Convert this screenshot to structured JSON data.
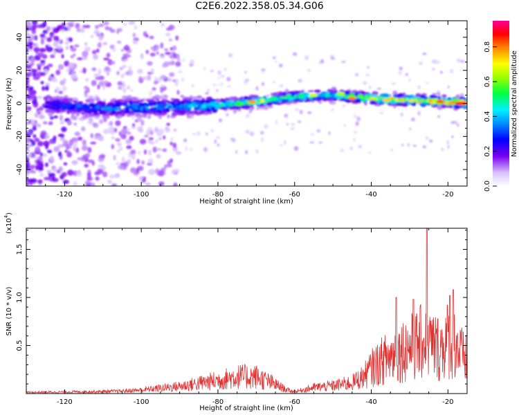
{
  "title": "C2E6.2022.358.05.34.G06",
  "chart_data": [
    {
      "type": "heatmap",
      "xlabel": "Height of straight line (km)",
      "ylabel": "Frequency (Hz)",
      "xlim": [
        -130,
        -15
      ],
      "ylim": [
        -50,
        50
      ],
      "xticks": [
        -120,
        -100,
        -80,
        -60,
        -40,
        -20
      ],
      "yticks": [
        -40,
        -20,
        0,
        20,
        40
      ],
      "colorbar": {
        "label": "Normalized spectral amplitude",
        "range": [
          0,
          0.95
        ],
        "ticks": [
          "0.0",
          "0.2",
          "0.4",
          "0.6",
          "0.8"
        ]
      },
      "ridge": {
        "description_points_x": [
          -130,
          -110,
          -100,
          -90,
          -80,
          -70,
          -60,
          -50,
          -40,
          -30,
          -20,
          -15
        ],
        "frequency_hz": [
          0,
          -3,
          -2,
          -2,
          -1,
          1,
          4,
          5,
          3,
          2,
          1,
          0
        ],
        "peak_amplitude": [
          0.2,
          0.3,
          0.35,
          0.35,
          0.45,
          0.7,
          0.55,
          0.5,
          0.8,
          0.75,
          0.85,
          0.95
        ]
      },
      "colors": {
        "scale": [
          "#ffffff",
          "#e8d8ff",
          "#7700ee",
          "#0000ff",
          "#00ffff",
          "#00ff00",
          "#ffff00",
          "#ff7700",
          "#ff0000",
          "#ff00aa"
        ]
      }
    },
    {
      "type": "line",
      "xlabel": "Height of straight line (km)",
      "ylabel": "SNR (10 * v/v)",
      "scale_note": "(x10",
      "scale_exp": "4",
      "scale_close": ")",
      "xlim": [
        -130,
        -15
      ],
      "ylim": [
        0,
        1.72
      ],
      "xticks": [
        -120,
        -100,
        -80,
        -60,
        -40,
        -20
      ],
      "yticks": [
        "0.5",
        "1.0",
        "1.5"
      ],
      "ytick_values": [
        0.5,
        1.0,
        1.5
      ],
      "envelope_x": [
        -130,
        -115,
        -105,
        -100,
        -95,
        -90,
        -85,
        -80,
        -75,
        -70,
        -66,
        -62,
        -60,
        -55,
        -50,
        -45,
        -42,
        -40,
        -37,
        -34,
        -31,
        -28,
        -26,
        -24,
        -22,
        -20,
        -18,
        -17,
        -16,
        -15
      ],
      "envelope_y": [
        0.02,
        0.03,
        0.04,
        0.06,
        0.09,
        0.12,
        0.17,
        0.22,
        0.28,
        0.28,
        0.18,
        0.06,
        0.03,
        0.1,
        0.13,
        0.18,
        0.28,
        0.42,
        0.55,
        0.65,
        0.75,
        0.8,
        0.9,
        0.8,
        0.75,
        0.9,
        0.85,
        0.7,
        0.6,
        0.55
      ],
      "peaks": [
        {
          "x": -25.5,
          "y": 1.72
        },
        {
          "x": -18.6,
          "y": 1.08
        },
        {
          "x": -19.5,
          "y": 1.02
        },
        {
          "x": -33.5,
          "y": 1.0
        },
        {
          "x": -29.0,
          "y": 0.98
        }
      ],
      "line_color": "#e03030"
    }
  ]
}
